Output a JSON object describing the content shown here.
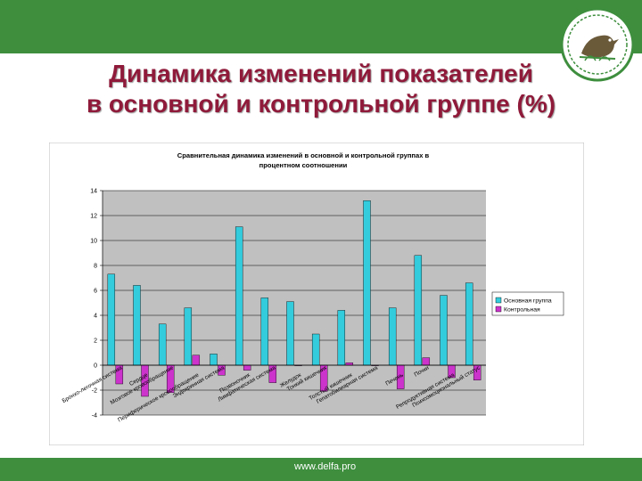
{
  "slide": {
    "title_line1": "Динамика изменений показателей",
    "title_line2": "в основной и контрольной группе (%)",
    "footer_url": "www.delfa.pro",
    "colors": {
      "header_green": "#3e8e3e",
      "title": "#8f1a3a"
    },
    "logo_icon": "bird-logo-icon"
  },
  "chart_data": {
    "type": "bar",
    "title": "Сравнительная динамика изменений в основной и контрольной группах в процентном соотношении",
    "ylim": [
      -4,
      14
    ],
    "yticks": [
      -4,
      -2,
      0,
      2,
      4,
      6,
      8,
      10,
      12,
      14
    ],
    "grid": true,
    "legend_position": "right",
    "categories": [
      "Бронхо-легочная система",
      "Сердце",
      "Мозговое кровообращение",
      "Периферическое кровообращение",
      "Эндокринная система",
      "Позвоночник",
      "Лимфатическая система",
      "Желудок",
      "Тонкий кишечник",
      "Толстый кишечник",
      "Гепатобилиарная система",
      "Печень",
      "Почки",
      "Репродуктивная система",
      "Психоэмоциональный статус"
    ],
    "series": [
      {
        "name": "Основная группа",
        "color": "#33ccdd",
        "values": [
          7.3,
          6.4,
          3.3,
          4.6,
          0.9,
          11.1,
          5.4,
          5.1,
          2.5,
          4.4,
          13.2,
          4.6,
          8.8,
          5.6,
          6.6
        ]
      },
      {
        "name": "Контрольная",
        "color": "#cc33cc",
        "values": [
          -1.5,
          -2.5,
          -2.2,
          0.8,
          -0.8,
          -0.4,
          -1.4,
          0.0,
          -2.1,
          0.2,
          0.0,
          -1.9,
          0.6,
          -1.0,
          -1.2
        ]
      }
    ]
  }
}
